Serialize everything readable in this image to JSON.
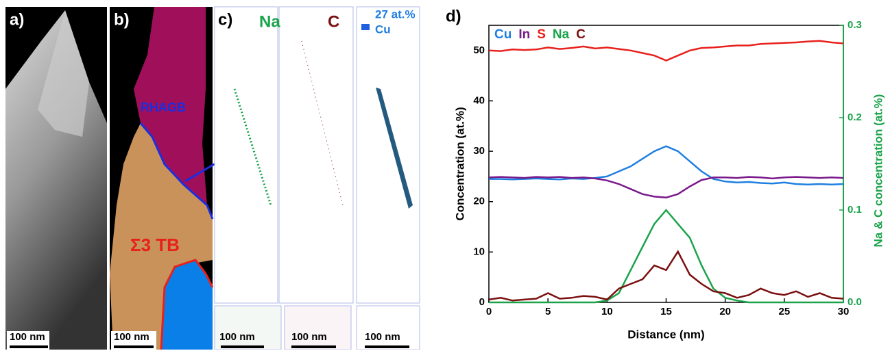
{
  "panels": {
    "a": {
      "label": "a)",
      "scale_bar": "100 nm"
    },
    "b": {
      "label": "b)",
      "scale_bar": "100 nm",
      "boundary_1": "RHAGB",
      "boundary_2": "Σ3 TB"
    },
    "c": {
      "label": "c)",
      "element_1": "Na",
      "element_2": "C",
      "isosurface": "27 at.%",
      "isosurface_element": "Cu",
      "scale_bars": [
        "100 nm",
        "100 nm",
        "100 nm"
      ]
    },
    "d": {
      "label": "d)"
    }
  },
  "chart_data": {
    "type": "line",
    "x_label": "Distance (nm)",
    "y_label": "Concentration (at.%)",
    "y2_label": "Na & C concentration (at.%)",
    "x": [
      0,
      1,
      2,
      3,
      4,
      5,
      6,
      7,
      8,
      9,
      10,
      11,
      12,
      13,
      14,
      15,
      16,
      17,
      18,
      19,
      20,
      21,
      22,
      23,
      24,
      25,
      26,
      27,
      28,
      29,
      30
    ],
    "series": [
      {
        "name": "Cu",
        "color": "#1f7fe0",
        "values": [
          24.5,
          24.5,
          24.4,
          24.5,
          24.6,
          24.5,
          24.4,
          24.6,
          24.5,
          24.7,
          25,
          26,
          27,
          28.5,
          30,
          31,
          30,
          28,
          26,
          24.5,
          24,
          23.8,
          23.9,
          23.7,
          23.6,
          23.8,
          23.5,
          23.4,
          23.5,
          23.4,
          23.5
        ]
      },
      {
        "name": "In",
        "color": "#7a1a8c",
        "values": [
          24.8,
          24.9,
          24.8,
          24.7,
          24.9,
          24.8,
          24.9,
          24.7,
          24.8,
          24.6,
          24.2,
          23.5,
          22.5,
          21.5,
          21,
          20.8,
          21.5,
          23,
          24.3,
          24.8,
          24.8,
          24.7,
          24.9,
          24.8,
          24.6,
          24.8,
          24.9,
          24.8,
          24.7,
          24.8,
          24.7
        ]
      },
      {
        "name": "S",
        "color": "#e8201c",
        "values": [
          50,
          49.9,
          50.2,
          50.1,
          50.2,
          50.6,
          50.3,
          50.5,
          50.8,
          50.4,
          50.6,
          50.3,
          50,
          49.5,
          49,
          48,
          49,
          50,
          50.5,
          50.6,
          50.8,
          51,
          51,
          51.3,
          51.4,
          51.5,
          51.6,
          51.8,
          51.9,
          51.6,
          51.4
        ]
      },
      {
        "name": "Na",
        "color": "#1aa34a",
        "axis": "y2",
        "values": [
          0,
          0,
          0,
          0,
          0,
          0,
          0,
          0,
          0,
          0,
          0.002,
          0.01,
          0.035,
          0.06,
          0.085,
          0.1,
          0.085,
          0.07,
          0.04,
          0.015,
          0.005,
          0.002,
          0,
          0,
          0,
          0,
          0,
          0,
          0,
          0,
          0
        ]
      },
      {
        "name": "C",
        "color": "#7a1010",
        "axis": "y2",
        "values": [
          0.003,
          0.005,
          0.002,
          0.003,
          0.004,
          0.01,
          0.004,
          0.005,
          0.007,
          0.006,
          0.003,
          0.015,
          0.02,
          0.025,
          0.04,
          0.035,
          0.055,
          0.03,
          0.02,
          0.012,
          0.01,
          0.005,
          0.008,
          0.015,
          0.01,
          0.008,
          0.012,
          0.006,
          0.01,
          0.005,
          0.004
        ]
      }
    ],
    "xlim": [
      0,
      30
    ],
    "xticks": [
      0,
      5,
      10,
      15,
      20,
      25,
      30
    ],
    "ylim": [
      0,
      55
    ],
    "yticks": [
      0,
      10,
      20,
      30,
      40,
      50
    ],
    "y2lim": [
      0,
      0.3
    ],
    "y2ticks": [
      {
        "value": 0,
        "label": "0.0"
      },
      0.1,
      0.2,
      0.3
    ],
    "y2_color": "#1aa34a"
  }
}
